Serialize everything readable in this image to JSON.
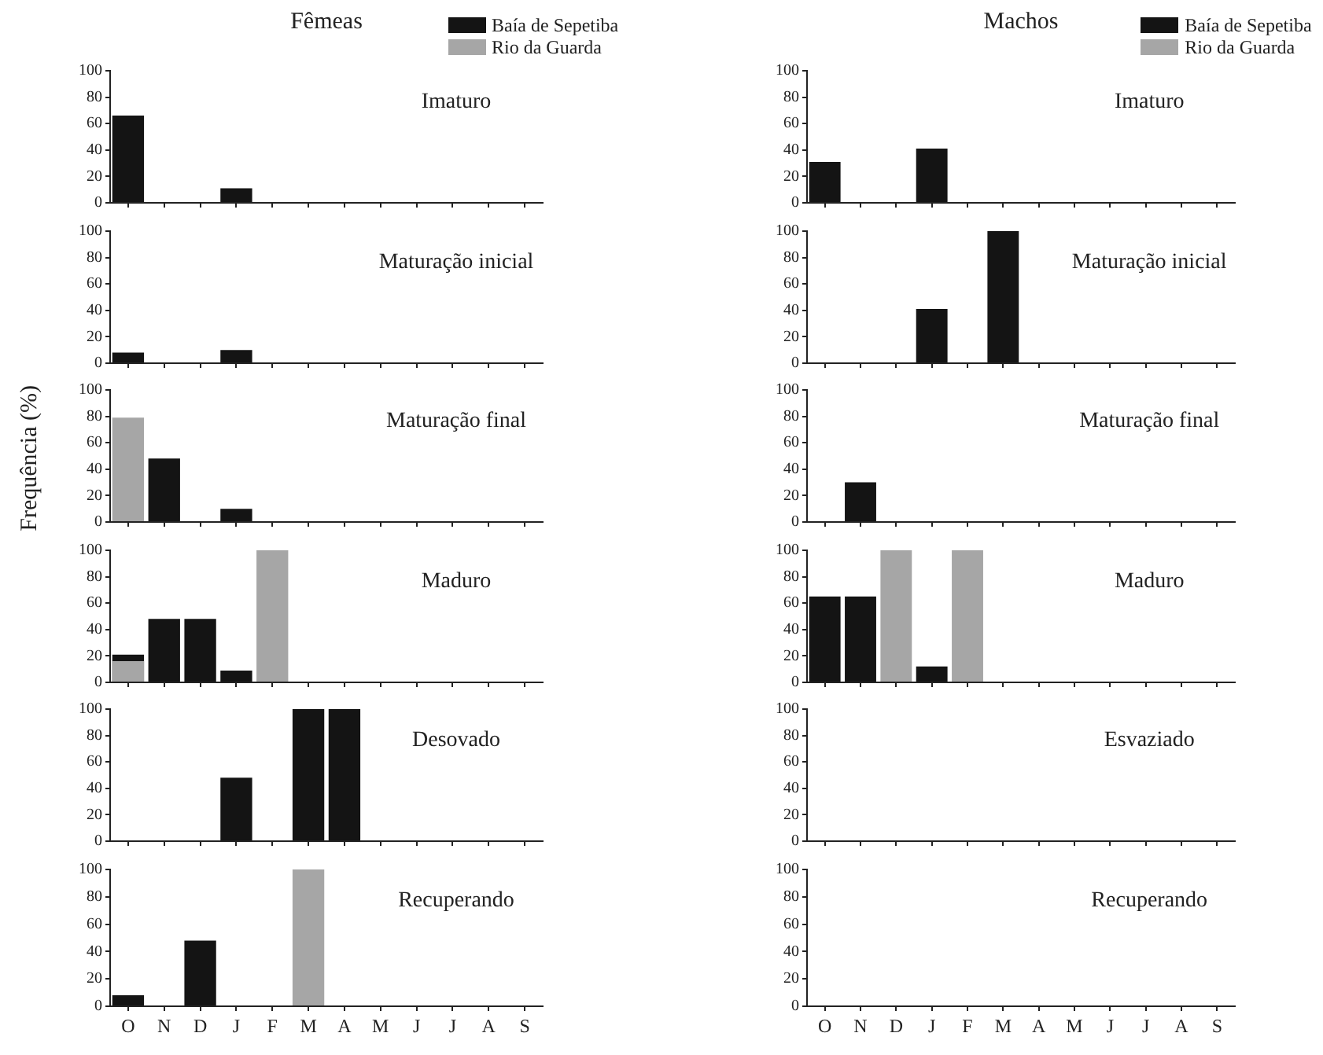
{
  "chart_data": [
    {
      "type": "bar",
      "title": "Fêmeas",
      "annotations": [
        "Imaturo"
      ],
      "categories": [
        null,
        null,
        null,
        null,
        null,
        null,
        null,
        null,
        null,
        null,
        null,
        null
      ],
      "series": [
        {
          "name": "Baía de Sepetiba",
          "color": "#141414",
          "values": [
            66,
            null,
            null,
            11,
            null,
            null,
            null,
            null,
            null,
            null,
            null,
            null
          ]
        },
        {
          "name": "Rio da Guarda",
          "color": "#a6a6a6",
          "values": [
            null,
            null,
            null,
            null,
            null,
            null,
            null,
            null,
            null,
            null,
            null,
            null
          ]
        }
      ],
      "ylim": [
        0,
        100
      ],
      "yticks": [
        0,
        20,
        40,
        60,
        80,
        100
      ],
      "tick_labels": "y",
      "legend": "top right"
    },
    {
      "type": "bar",
      "annotations": [
        "Maturação inicial"
      ],
      "categories": [
        null,
        null,
        null,
        null,
        null,
        null,
        null,
        null,
        null,
        null,
        null,
        null
      ],
      "values": [
        8,
        null,
        null,
        10,
        null,
        null,
        null,
        null,
        null,
        null,
        null,
        null
      ],
      "color": "#141414",
      "ylim": [
        0,
        100
      ],
      "yticks": [
        0,
        20,
        40,
        60,
        80,
        100
      ],
      "tick_labels": "y"
    },
    {
      "type": "bar",
      "annotations": [
        "Maturação final"
      ],
      "ylabel": "Frequência (%)",
      "categories": [
        null,
        null,
        null,
        null,
        null,
        null,
        null,
        null,
        null,
        null,
        null,
        null
      ],
      "series": [
        {
          "color": "#141414",
          "values": [
            null,
            48,
            null,
            10,
            null,
            null,
            null,
            null,
            null,
            null,
            null,
            null
          ]
        },
        {
          "color": "#a6a6a6",
          "values": [
            79,
            null,
            null,
            null,
            null,
            null,
            null,
            null,
            null,
            null,
            null,
            null
          ]
        }
      ],
      "ylim": [
        0,
        100
      ],
      "yticks": [
        0,
        20,
        40,
        60,
        80,
        100
      ],
      "tick_labels": "y"
    },
    {
      "type": "bar",
      "annotations": [
        "Maduro"
      ],
      "categories": [
        null,
        null,
        null,
        null,
        null,
        null,
        null,
        null,
        null,
        null,
        null,
        null
      ],
      "series": [
        {
          "color": "#141414",
          "values": [
            21,
            48,
            48,
            9,
            null,
            null,
            null,
            null,
            null,
            null,
            null,
            null
          ]
        },
        {
          "color": "#a6a6a6",
          "values": [
            16,
            null,
            null,
            null,
            100,
            null,
            null,
            null,
            null,
            null,
            null,
            null
          ]
        }
      ],
      "ylim": [
        0,
        100
      ],
      "yticks": [
        0,
        20,
        40,
        60,
        80,
        100
      ],
      "tick_labels": "y"
    },
    {
      "type": "bar",
      "annotations": [
        "Desovado"
      ],
      "categories": [
        null,
        null,
        null,
        null,
        null,
        null,
        null,
        null,
        null,
        null,
        null,
        null
      ],
      "values": [
        null,
        null,
        null,
        48,
        null,
        100,
        100,
        null,
        null,
        null,
        null,
        null
      ],
      "color": "#141414",
      "ylim": [
        0,
        100
      ],
      "yticks": [
        0,
        20,
        40,
        60,
        80,
        100
      ],
      "tick_labels": "y"
    },
    {
      "type": "bar",
      "annotations": [
        "Recuperando"
      ],
      "categories": [
        "O",
        "N",
        "D",
        "J",
        "F",
        "M",
        "A",
        "M",
        "J",
        "J",
        "A",
        "S"
      ],
      "series": [
        {
          "color": "#141414",
          "values": [
            8,
            null,
            48,
            null,
            null,
            null,
            null,
            null,
            null,
            null,
            null,
            null
          ]
        },
        {
          "color": "#a6a6a6",
          "values": [
            null,
            null,
            null,
            null,
            null,
            100,
            null,
            null,
            null,
            null,
            null,
            null
          ]
        }
      ],
      "ylim": [
        0,
        100
      ],
      "yticks": [
        0,
        20,
        40,
        60,
        80,
        100
      ]
    },
    {
      "type": "bar",
      "title": "Machos",
      "annotations": [
        "Imaturo"
      ],
      "categories": [
        null,
        null,
        null,
        null,
        null,
        null,
        null,
        null,
        null,
        null,
        null,
        null
      ],
      "series": [
        {
          "name": "Baía de Sepetiba",
          "color": "#141414",
          "values": [
            31,
            null,
            null,
            41,
            null,
            null,
            null,
            null,
            null,
            null,
            null,
            null
          ]
        },
        {
          "name": "Rio da Guarda",
          "color": "#a6a6a6",
          "values": [
            null,
            null,
            null,
            null,
            null,
            null,
            null,
            null,
            null,
            null,
            null,
            null
          ]
        }
      ],
      "ylim": [
        0,
        100
      ],
      "yticks": [
        0,
        20,
        40,
        60,
        80,
        100
      ],
      "tick_labels": "y",
      "legend": "top right"
    },
    {
      "type": "bar",
      "annotations": [
        "Maturação inicial"
      ],
      "categories": [
        null,
        null,
        null,
        null,
        null,
        null,
        null,
        null,
        null,
        null,
        null,
        null
      ],
      "values": [
        null,
        null,
        null,
        41,
        null,
        100,
        null,
        null,
        null,
        null,
        null,
        null
      ],
      "color": "#141414",
      "ylim": [
        0,
        100
      ],
      "yticks": [
        0,
        20,
        40,
        60,
        80,
        100
      ],
      "tick_labels": "y"
    },
    {
      "type": "bar",
      "annotations": [
        "Maturação final"
      ],
      "categories": [
        null,
        null,
        null,
        null,
        null,
        null,
        null,
        null,
        null,
        null,
        null,
        null
      ],
      "values": [
        null,
        30,
        null,
        null,
        null,
        null,
        null,
        null,
        null,
        null,
        null,
        null
      ],
      "color": "#141414",
      "ylim": [
        0,
        100
      ],
      "yticks": [
        0,
        20,
        40,
        60,
        80,
        100
      ],
      "tick_labels": "y"
    },
    {
      "type": "bar",
      "annotations": [
        "Maduro"
      ],
      "categories": [
        null,
        null,
        null,
        null,
        null,
        null,
        null,
        null,
        null,
        null,
        null,
        null
      ],
      "series": [
        {
          "color": "#141414",
          "values": [
            65,
            65,
            null,
            12,
            null,
            null,
            null,
            null,
            null,
            null,
            null,
            null
          ]
        },
        {
          "color": "#a6a6a6",
          "values": [
            null,
            null,
            100,
            null,
            100,
            null,
            null,
            null,
            null,
            null,
            null,
            null
          ]
        }
      ],
      "ylim": [
        0,
        100
      ],
      "yticks": [
        0,
        20,
        40,
        60,
        80,
        100
      ],
      "tick_labels": "y"
    },
    {
      "type": "bar",
      "annotations": [
        "Esvaziado"
      ],
      "categories": [
        null,
        null,
        null,
        null,
        null,
        null,
        null,
        null,
        null,
        null,
        null,
        null
      ],
      "values": [
        null,
        null,
        null,
        null,
        null,
        null,
        null,
        null,
        null,
        null,
        null,
        null
      ],
      "ylim": [
        0,
        100
      ],
      "yticks": [
        0,
        20,
        40,
        60,
        80,
        100
      ],
      "tick_labels": "y"
    },
    {
      "type": "bar",
      "annotations": [
        "Recuperando"
      ],
      "categories": [
        "O",
        "N",
        "D",
        "J",
        "F",
        "M",
        "A",
        "M",
        "J",
        "J",
        "A",
        "S"
      ],
      "values": [
        null,
        null,
        null,
        null,
        null,
        null,
        null,
        null,
        null,
        null,
        null,
        null
      ],
      "ylim": [
        0,
        100
      ],
      "yticks": [
        0,
        20,
        40,
        60,
        80,
        100
      ]
    }
  ]
}
